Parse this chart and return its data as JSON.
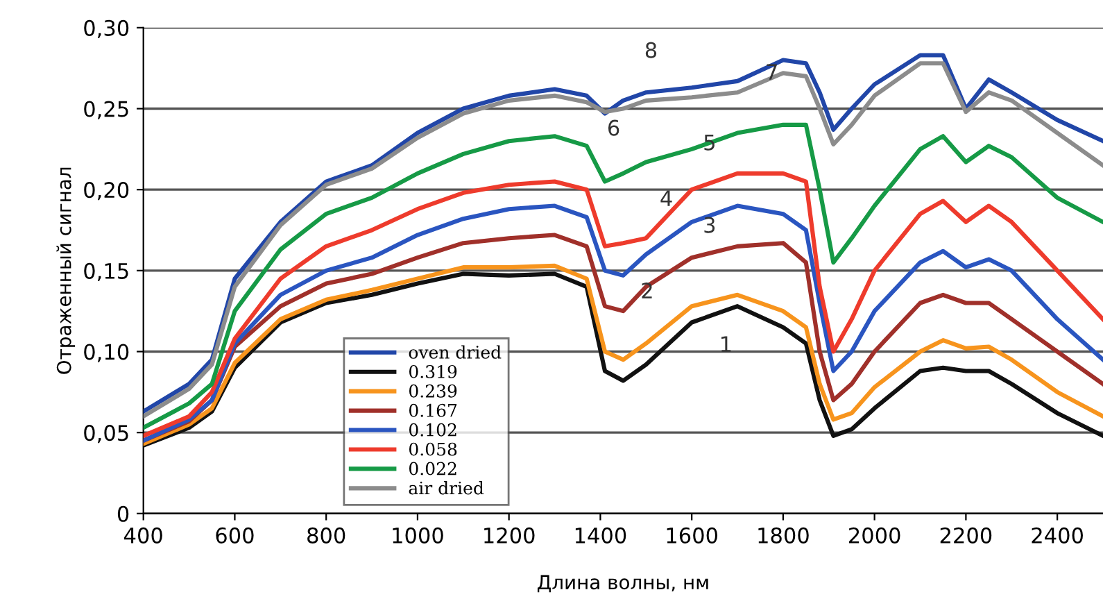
{
  "chart_data": {
    "type": "line",
    "xlabel": "Длина волны, нм",
    "ylabel": "Отраженный сигнал",
    "x": [
      400,
      500,
      550,
      600,
      700,
      800,
      900,
      1000,
      1100,
      1200,
      1300,
      1370,
      1410,
      1450,
      1500,
      1600,
      1700,
      1800,
      1850,
      1880,
      1910,
      1950,
      2000,
      2100,
      2150,
      2200,
      2250,
      2300,
      2400,
      2500
    ],
    "series": [
      {
        "name": "oven dried",
        "color": "#2146a8",
        "values": [
          0.063,
          0.08,
          0.095,
          0.145,
          0.18,
          0.205,
          0.215,
          0.235,
          0.25,
          0.258,
          0.262,
          0.258,
          0.247,
          0.255,
          0.26,
          0.263,
          0.267,
          0.28,
          0.278,
          0.26,
          0.237,
          0.25,
          0.265,
          0.283,
          0.283,
          0.25,
          0.268,
          0.26,
          0.243,
          0.23
        ]
      },
      {
        "name": "0.319",
        "color": "#111111",
        "values": [
          0.042,
          0.053,
          0.063,
          0.09,
          0.118,
          0.13,
          0.135,
          0.142,
          0.148,
          0.147,
          0.148,
          0.14,
          0.088,
          0.082,
          0.092,
          0.118,
          0.128,
          0.115,
          0.105,
          0.07,
          0.048,
          0.052,
          0.065,
          0.088,
          0.09,
          0.088,
          0.088,
          0.08,
          0.062,
          0.048
        ]
      },
      {
        "name": "0.239",
        "color": "#f7941d",
        "values": [
          0.043,
          0.055,
          0.065,
          0.093,
          0.12,
          0.132,
          0.138,
          0.145,
          0.152,
          0.152,
          0.153,
          0.145,
          0.1,
          0.095,
          0.105,
          0.128,
          0.135,
          0.125,
          0.115,
          0.08,
          0.058,
          0.062,
          0.078,
          0.1,
          0.107,
          0.102,
          0.103,
          0.095,
          0.075,
          0.06
        ]
      },
      {
        "name": "0.167",
        "color": "#a0302a",
        "values": [
          0.045,
          0.057,
          0.07,
          0.103,
          0.128,
          0.142,
          0.148,
          0.158,
          0.167,
          0.17,
          0.172,
          0.165,
          0.128,
          0.125,
          0.14,
          0.158,
          0.165,
          0.167,
          0.155,
          0.1,
          0.07,
          0.08,
          0.1,
          0.13,
          0.135,
          0.13,
          0.13,
          0.12,
          0.1,
          0.08
        ]
      },
      {
        "name": "0.102",
        "color": "#2a55c0",
        "values": [
          0.045,
          0.058,
          0.07,
          0.105,
          0.135,
          0.15,
          0.158,
          0.172,
          0.182,
          0.188,
          0.19,
          0.183,
          0.15,
          0.147,
          0.16,
          0.18,
          0.19,
          0.185,
          0.175,
          0.13,
          0.088,
          0.1,
          0.125,
          0.155,
          0.162,
          0.152,
          0.157,
          0.15,
          0.12,
          0.095
        ]
      },
      {
        "name": "0.058",
        "color": "#ee3b2c",
        "values": [
          0.048,
          0.06,
          0.075,
          0.108,
          0.145,
          0.165,
          0.175,
          0.188,
          0.198,
          0.203,
          0.205,
          0.2,
          0.165,
          0.167,
          0.17,
          0.2,
          0.21,
          0.21,
          0.205,
          0.14,
          0.1,
          0.12,
          0.15,
          0.185,
          0.193,
          0.18,
          0.19,
          0.18,
          0.15,
          0.12
        ]
      },
      {
        "name": "0.022",
        "color": "#169a46",
        "values": [
          0.053,
          0.068,
          0.08,
          0.125,
          0.163,
          0.185,
          0.195,
          0.21,
          0.222,
          0.23,
          0.233,
          0.227,
          0.205,
          0.21,
          0.217,
          0.225,
          0.235,
          0.24,
          0.24,
          0.2,
          0.155,
          0.17,
          0.19,
          0.225,
          0.233,
          0.217,
          0.227,
          0.22,
          0.195,
          0.18
        ]
      },
      {
        "name": "air dried",
        "color": "#8c8c8c",
        "values": [
          0.06,
          0.077,
          0.092,
          0.14,
          0.178,
          0.203,
          0.213,
          0.232,
          0.247,
          0.255,
          0.258,
          0.254,
          0.248,
          0.25,
          0.255,
          0.257,
          0.26,
          0.272,
          0.27,
          0.25,
          0.228,
          0.24,
          0.258,
          0.278,
          0.278,
          0.248,
          0.26,
          0.255,
          0.235,
          0.215
        ]
      }
    ],
    "annotations": [
      "8",
      "7",
      "6",
      "5",
      "4",
      "3",
      "2",
      "1"
    ],
    "xlim": [
      400,
      2500
    ],
    "xticks": [
      400,
      600,
      800,
      1000,
      1200,
      1400,
      1600,
      1800,
      2000,
      2200,
      2400
    ],
    "ylim": [
      0,
      0.3
    ],
    "yticks": [
      0,
      {
        "value": 0.05,
        "label": "0,05"
      },
      {
        "value": 0.1,
        "label": "0,10"
      },
      {
        "value": 0.15,
        "label": "0,15"
      },
      {
        "value": 0.2,
        "label": "0,20"
      },
      {
        "value": 0.25,
        "label": "0,25"
      },
      {
        "value": 0.3,
        "label": "0,30"
      }
    ],
    "grid": "y",
    "legend": "bottom left",
    "marker": "none",
    "line_style": "solid"
  }
}
